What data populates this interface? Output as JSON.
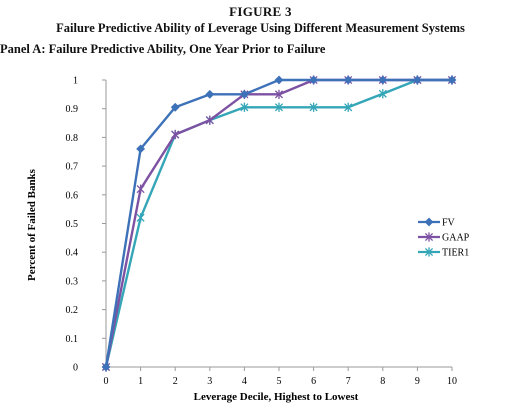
{
  "figure": {
    "title": "FIGURE 3",
    "subtitle": "Failure Predictive Ability of Leverage Using Different Measurement Systems",
    "panel_title": "Panel A: Failure Predictive Ability, One Year Prior to Failure"
  },
  "chart_data": {
    "type": "line",
    "title": "",
    "xlabel": "Leverage Decile, Highest to Lowest",
    "ylabel": "Percent of Failed Banks",
    "x": [
      0,
      1,
      2,
      3,
      4,
      5,
      6,
      7,
      8,
      9,
      10
    ],
    "x_tick_labels": [
      "0",
      "1",
      "2",
      "3",
      "4",
      "5",
      "6",
      "7",
      "8",
      "9",
      "10"
    ],
    "y_tick_labels": [
      "0",
      "0.1",
      "0.2",
      "0.3",
      "0.4",
      "0.5",
      "0.6",
      "0.7",
      "0.8",
      "0.9",
      "1"
    ],
    "ylim": [
      0,
      1
    ],
    "xlim": [
      0,
      10
    ],
    "grid": false,
    "legend_position": "right",
    "series": [
      {
        "name": "FV",
        "color": "#3d71b8",
        "marker": "diamond",
        "values": [
          0,
          0.76,
          0.905,
          0.95,
          0.95,
          1.0,
          1.0,
          1.0,
          1.0,
          1.0,
          1.0
        ]
      },
      {
        "name": "GAAP",
        "color": "#7d52a3",
        "marker": "x-star",
        "values": [
          0,
          0.62,
          0.81,
          0.86,
          0.95,
          0.95,
          1.0,
          1.0,
          1.0,
          1.0,
          1.0
        ]
      },
      {
        "name": "TIER1",
        "color": "#34a6b8",
        "marker": "x-star",
        "values": [
          0,
          0.52,
          0.81,
          0.86,
          0.905,
          0.905,
          0.905,
          0.905,
          0.952,
          1.0,
          1.0
        ]
      }
    ]
  }
}
